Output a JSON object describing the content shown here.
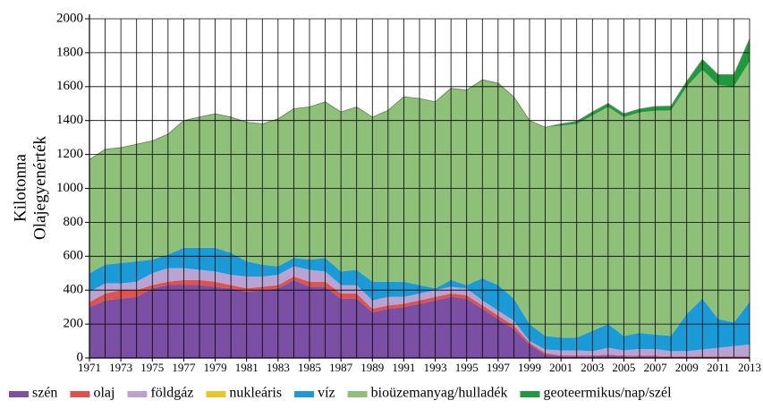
{
  "chart_data": {
    "type": "stacked_area",
    "y_label_lines": [
      "Kilotonna",
      "Olajegyenérték"
    ],
    "x": [
      1971,
      1972,
      1973,
      1974,
      1975,
      1976,
      1977,
      1978,
      1979,
      1980,
      1981,
      1982,
      1983,
      1984,
      1985,
      1986,
      1987,
      1988,
      1989,
      1990,
      1991,
      1992,
      1993,
      1994,
      1995,
      1996,
      1997,
      1998,
      1999,
      2000,
      2001,
      2002,
      2003,
      2004,
      2005,
      2006,
      2007,
      2008,
      2009,
      2010,
      2011,
      2012,
      2013
    ],
    "xlim": [
      1971,
      2013
    ],
    "xticks": [
      1971,
      1973,
      1975,
      1977,
      1979,
      1981,
      1983,
      1985,
      1987,
      1989,
      1991,
      1993,
      1995,
      1997,
      1999,
      2001,
      2003,
      2005,
      2007,
      2009,
      2011,
      2013
    ],
    "ylim": [
      0,
      2000
    ],
    "yticks": [
      0,
      200,
      400,
      600,
      800,
      1000,
      1200,
      1400,
      1600,
      1800,
      2000
    ],
    "grid": true,
    "legend": "bottom",
    "series": [
      {
        "name": "szén",
        "color": "#7b4fa3",
        "values": [
          300,
          340,
          350,
          360,
          410,
          430,
          430,
          430,
          420,
          410,
          390,
          400,
          410,
          460,
          420,
          420,
          350,
          350,
          270,
          290,
          300,
          320,
          340,
          360,
          350,
          290,
          230,
          170,
          80,
          20,
          10,
          10,
          10,
          15,
          10,
          8,
          8,
          5,
          5,
          5,
          5,
          5,
          5
        ]
      },
      {
        "name": "olaj",
        "color": "#e0524c",
        "values": [
          30,
          40,
          50,
          40,
          20,
          20,
          30,
          30,
          30,
          20,
          20,
          20,
          20,
          20,
          30,
          30,
          30,
          30,
          20,
          20,
          20,
          20,
          20,
          20,
          20,
          20,
          20,
          20,
          10,
          10,
          5,
          5,
          5,
          5,
          5,
          5,
          5,
          5,
          5,
          5,
          5,
          5,
          5
        ]
      },
      {
        "name": "földgáz",
        "color": "#b9a3d3",
        "values": [
          60,
          60,
          40,
          50,
          70,
          80,
          70,
          60,
          60,
          60,
          70,
          60,
          60,
          60,
          70,
          60,
          50,
          50,
          50,
          50,
          40,
          40,
          40,
          40,
          40,
          30,
          30,
          30,
          10,
          20,
          30,
          30,
          25,
          40,
          30,
          40,
          40,
          30,
          30,
          40,
          50,
          60,
          70
        ]
      },
      {
        "name": "nukleáris",
        "color": "#e8c52a",
        "values": [
          0,
          0,
          0,
          0,
          0,
          0,
          0,
          0,
          0,
          0,
          0,
          0,
          0,
          0,
          0,
          0,
          0,
          0,
          0,
          0,
          0,
          0,
          0,
          0,
          0,
          0,
          0,
          0,
          0,
          0,
          0,
          0,
          0,
          0,
          0,
          0,
          0,
          0,
          0,
          0,
          0,
          0,
          0
        ]
      },
      {
        "name": "víz",
        "color": "#1a9ad6",
        "values": [
          110,
          110,
          120,
          120,
          80,
          80,
          120,
          130,
          140,
          130,
          90,
          70,
          50,
          50,
          60,
          80,
          80,
          90,
          110,
          90,
          90,
          50,
          10,
          40,
          20,
          130,
          150,
          130,
          100,
          80,
          75,
          75,
          120,
          140,
          85,
          95,
          85,
          90,
          220,
          300,
          170,
          140,
          250
        ]
      },
      {
        "name": "bioüzemanyag/hulladék",
        "color": "#8fc07a",
        "values": [
          670,
          680,
          680,
          690,
          700,
          710,
          750,
          770,
          790,
          800,
          820,
          830,
          870,
          880,
          900,
          920,
          940,
          960,
          970,
          1010,
          1090,
          1100,
          1100,
          1130,
          1150,
          1170,
          1190,
          1190,
          1200,
          1230,
          1250,
          1260,
          1270,
          1280,
          1290,
          1300,
          1320,
          1330,
          1340,
          1350,
          1380,
          1390,
          1420
        ]
      },
      {
        "name": "geoteermikus/nap/szél",
        "color": "#1e9a3e",
        "values": [
          0,
          0,
          0,
          0,
          0,
          0,
          0,
          0,
          0,
          0,
          0,
          0,
          0,
          0,
          0,
          0,
          0,
          0,
          0,
          0,
          0,
          0,
          0,
          0,
          0,
          0,
          0,
          0,
          0,
          0,
          10,
          15,
          20,
          20,
          20,
          20,
          25,
          25,
          30,
          60,
          60,
          70,
          130
        ]
      }
    ]
  }
}
